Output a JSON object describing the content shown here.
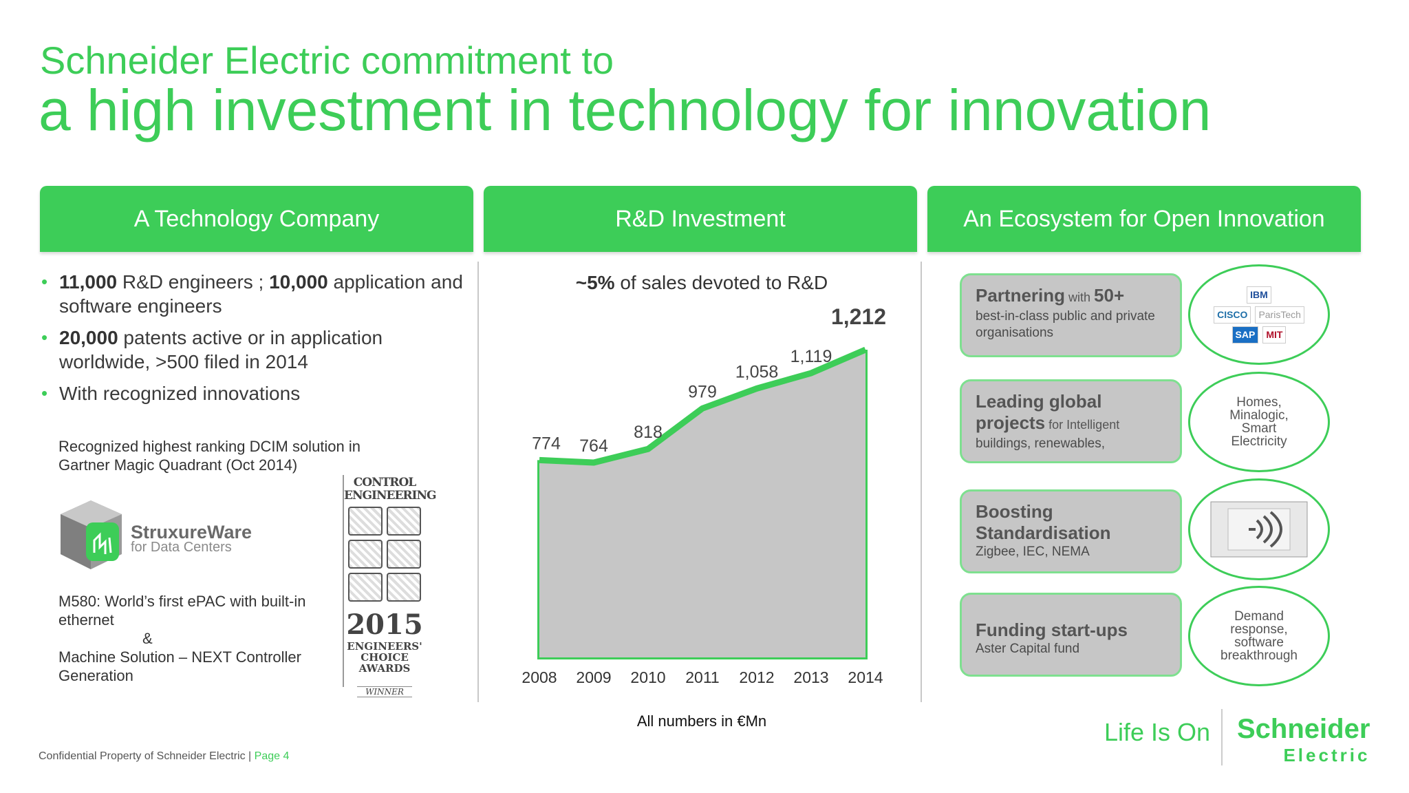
{
  "title": {
    "line1": "Schneider Electric commitment to",
    "line2": "a high investment in technology for innovation"
  },
  "columns": {
    "tech": {
      "header": "A Technology Company",
      "bullets": [
        {
          "b1": "11,000",
          "t1": " R&D engineers ; ",
          "b2": "10,000",
          "t2": " application and software engineers"
        },
        {
          "b1": "20,000",
          "t1": " patents active or in application worldwide, >500 filed in 2014",
          "b2": "",
          "t2": ""
        },
        {
          "b1": "",
          "t1": "With recognized innovations",
          "b2": "",
          "t2": ""
        }
      ],
      "dcim_note_line1": "Recognized highest ranking DCIM solution in",
      "dcim_note_line2": "Gartner Magic Quadrant (Oct 2014)",
      "struxureware_name": "StruxureWare",
      "struxureware_sub": "for Data Centers",
      "m580_line1": "M580: World’s first ePAC with built-in",
      "m580_line2": "ethernet",
      "amp": "&",
      "machine_line1": "Machine Solution – NEXT Controller",
      "machine_line2": "Generation",
      "award": {
        "title_line1": "CONTROL",
        "title_line2": "ENGINEERING",
        "year": "2015",
        "line1": "ENGINEERS'",
        "line2": "CHOICE",
        "line3": "AWARDS",
        "winner": "WINNER"
      }
    },
    "rnd": {
      "header": "R&D Investment",
      "subtitle_bold": "~5%",
      "subtitle_rest": " of sales devoted to R&D",
      "footnote": "All numbers in €Mn"
    },
    "eco": {
      "header": "An Ecosystem for Open Innovation",
      "cards": [
        {
          "head": "Partnering",
          "head_small": " with ",
          "head2": "50+",
          "text": "best-in-class public and private organisations"
        },
        {
          "head": "Leading global projects",
          "head_small": " for Intelligent",
          "head2": "",
          "text": "buildings, renewables,"
        },
        {
          "head": "Boosting Standardisation",
          "head_small": "",
          "head2": "",
          "text": "Zigbee, IEC, NEMA"
        },
        {
          "head": "Funding start-ups",
          "head_small": "",
          "head2": "",
          "text": "Aster Capital fund"
        }
      ],
      "oval_logos": [
        "IBM",
        "CISCO",
        "ParisTech",
        "SAP",
        "MIT"
      ],
      "oval_homes": "Homes, Minalogic, Smart Electricity",
      "oval_demand": "Demand response, software breakthrough"
    }
  },
  "chart_data": {
    "type": "area",
    "categories": [
      "2008",
      "2009",
      "2010",
      "2011",
      "2012",
      "2013",
      "2014"
    ],
    "values": [
      774,
      764,
      818,
      979,
      1058,
      1119,
      1212
    ],
    "value_labels": [
      "774",
      "764",
      "818",
      "979",
      "1,058",
      "1,119",
      "1,212"
    ],
    "title": "~5% of sales devoted to R&D",
    "unit_note": "All numbers in €Mn",
    "colors": {
      "line": "#3dcd58",
      "fill": "#c6c6c6"
    },
    "ylim": [
      0,
      1250
    ]
  },
  "footer": {
    "confidential": "Confidential Property of Schneider Electric | ",
    "page": "Page 4",
    "tagline": "Life Is On",
    "brand": "Schneider",
    "brand_sub": "Electric"
  },
  "colors": {
    "accent": "#3dcd58",
    "card": "#c6c6c6"
  }
}
